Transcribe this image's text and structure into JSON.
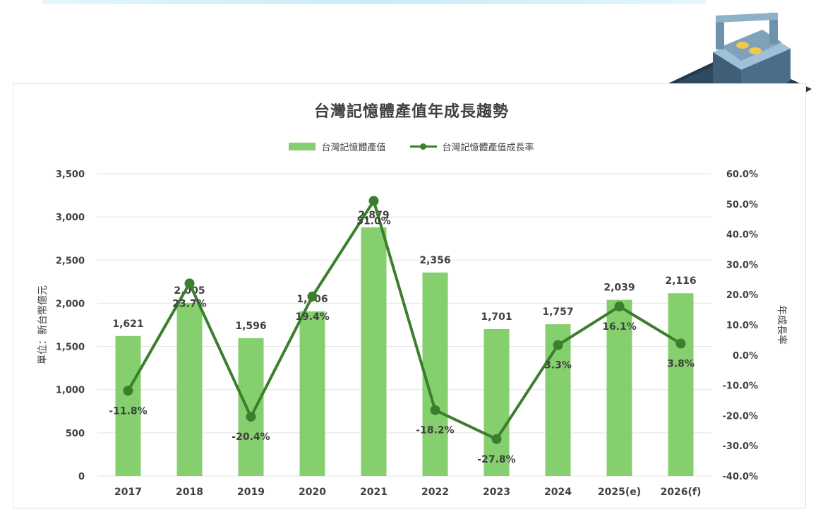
{
  "chart_data": {
    "type": "bar",
    "title": "台灣記憶體產值年成長趨勢",
    "categories": [
      "2017",
      "2018",
      "2019",
      "2020",
      "2021",
      "2022",
      "2023",
      "2024",
      "2025(e)",
      "2026(f)"
    ],
    "series": [
      {
        "name": "台灣記憶體產值",
        "type": "bar",
        "axis": "left",
        "values": [
          1621,
          2005,
          1596,
          1906,
          2879,
          2356,
          1701,
          1757,
          2039,
          2116
        ],
        "labels": [
          "1,621",
          "2,005",
          "1,596",
          "1,906",
          "2,879",
          "2,356",
          "1,701",
          "1,757",
          "2,039",
          "2,116"
        ]
      },
      {
        "name": "台灣記憶體產值成長率",
        "type": "line",
        "axis": "right",
        "values": [
          -11.8,
          23.7,
          -20.4,
          19.4,
          51.0,
          -18.2,
          -27.8,
          3.3,
          16.1,
          3.8
        ],
        "labels": [
          "-11.8%",
          "23.7%",
          "-20.4%",
          "19.4%",
          "51.0%",
          "-18.2%",
          "-27.8%",
          "3.3%",
          "16.1%",
          "3.8%"
        ]
      }
    ],
    "ylabel": "單位：新台幣億元",
    "y2label": "年成長率",
    "ylim": [
      0,
      3500
    ],
    "y2lim": [
      -40,
      60
    ],
    "yticks": [
      "0",
      "500",
      "1,000",
      "1,500",
      "2,000",
      "2,500",
      "3,000",
      "3,500"
    ],
    "y2ticks": [
      "-40.0%",
      "-30.0%",
      "-20.0%",
      "-10.0%",
      "0.0%",
      "10.0%",
      "20.0%",
      "30.0%",
      "40.0%",
      "50.0%",
      "60.0%"
    ],
    "grid": true,
    "legend_position": "top-center",
    "colors": {
      "bar": "#85cf6e",
      "line": "#3b7f2e",
      "grid": "#e3e3e3",
      "text": "#404040"
    }
  }
}
